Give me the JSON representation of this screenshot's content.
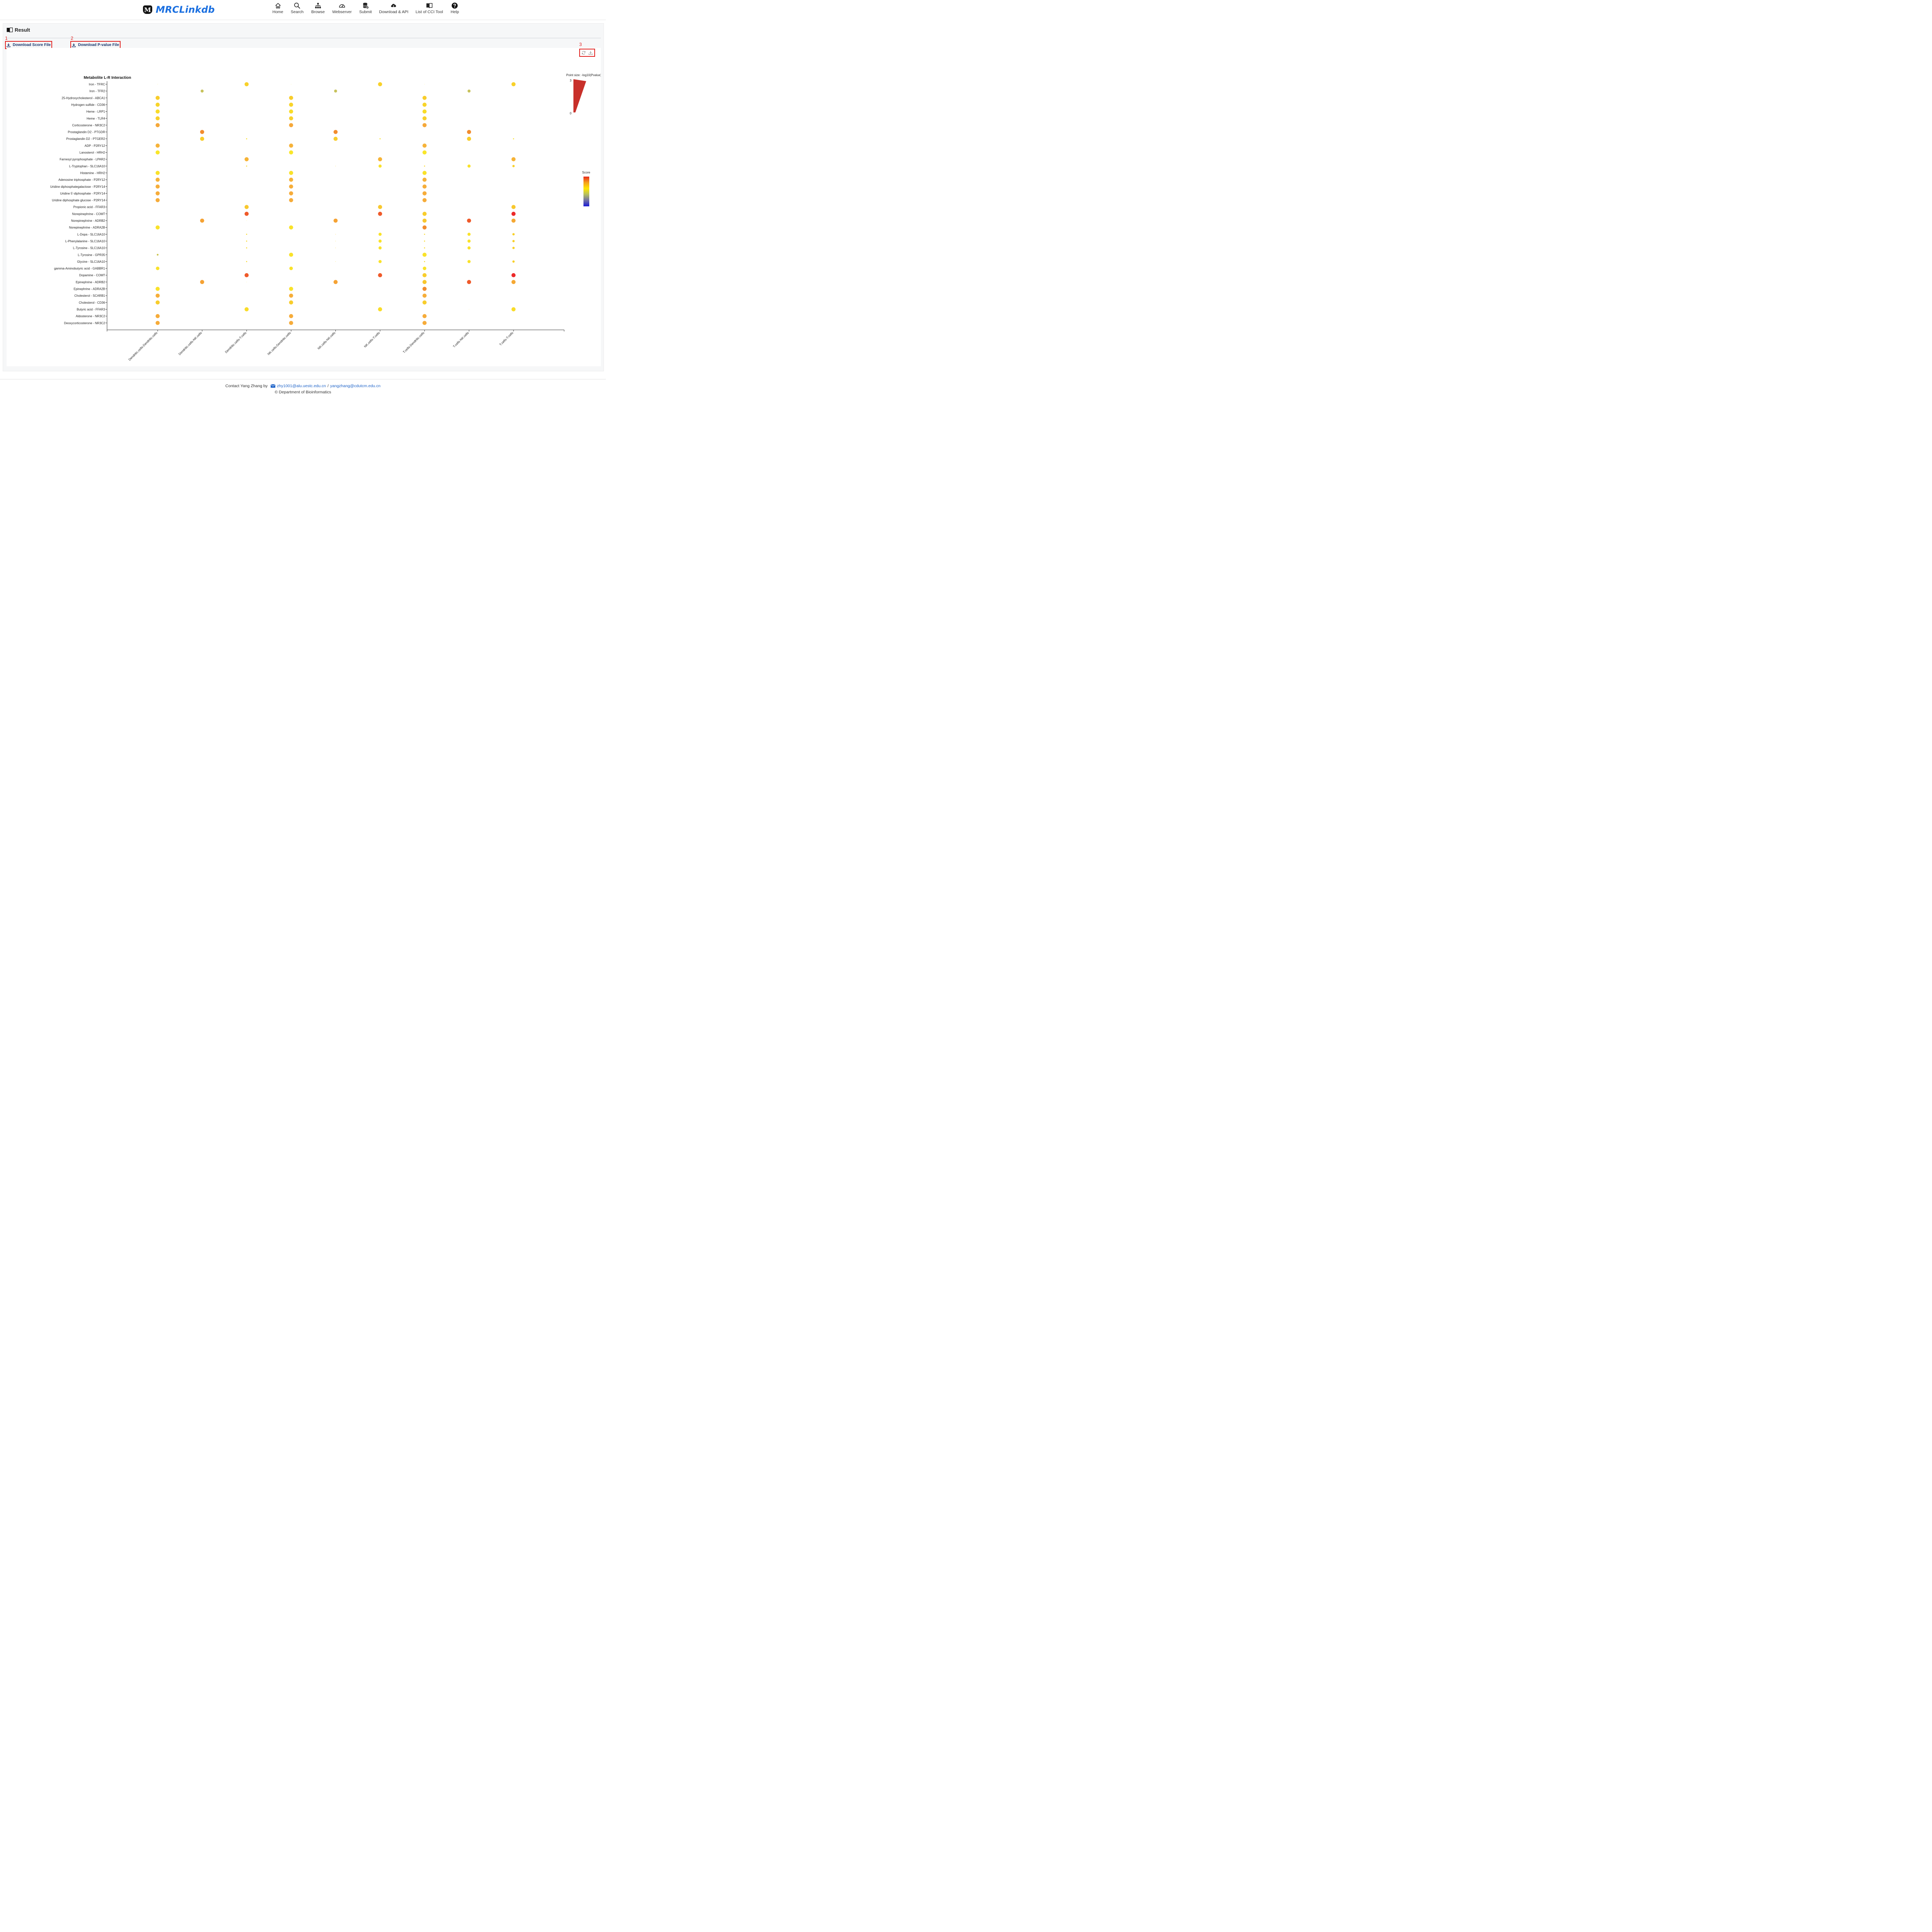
{
  "app": {
    "name": "MRCLinkdb",
    "logo_letter": "M"
  },
  "nav": [
    {
      "label": "Home",
      "icon": "home-icon"
    },
    {
      "label": "Search",
      "icon": "search-icon"
    },
    {
      "label": "Browse",
      "icon": "sitemap-icon"
    },
    {
      "label": "Webserver",
      "icon": "gauge-icon"
    },
    {
      "label": "Submit",
      "icon": "database-icon"
    },
    {
      "label": "Download & API",
      "icon": "cloud-download-icon"
    },
    {
      "label": "List of CCI Tool",
      "icon": "book-icon"
    },
    {
      "label": "Help",
      "icon": "help-icon"
    }
  ],
  "result": {
    "title": "Result",
    "download_score_label": "Download Score File",
    "download_pvalue_label": "Download P-value File",
    "markers": [
      "1",
      "2",
      "3"
    ]
  },
  "chart_data": {
    "type": "scatter",
    "title": "Metabolite L-R Interaction",
    "categories_x": [
      "Dendritic.cells-Dendritic.cells",
      "Dendritic.cells-NK.cells",
      "Dendritic.cells-T.cells",
      "NK.cells-Dendritic.cells",
      "NK.cells-NK.cells",
      "NK.cells-T.cells",
      "T.cells-Dendritic.cells",
      "T.cells-NK.cells",
      "T.cells-T.cells"
    ],
    "categories_y": [
      "Iron - TFRC",
      "Iron - TFR2",
      "25-Hydroxycholesterol - ABCA1",
      "Hydrogen sulfide - CD36",
      "Heme - LRP1",
      "Heme - TLR4",
      "Corticosterone - NR3C2",
      "Prostaglandin D2 - PTGDR",
      "Prostaglandin D2 - PTGER2",
      "ADP - P2RY12",
      "Lanosterol - HRH2",
      "Farnesyl pyrophosphate - LPAR2",
      "L-Tryptophan - SLC16A10",
      "Histamine - HRH2",
      "Adenosine triphosphate - P2RY12",
      "Uridine diphosphategalactose - P2RY14",
      "Uridine 5'-diphosphate - P2RY14",
      "Uridine diphosphate glucose - P2RY14",
      "Propionic acid - FFAR3",
      "Norepinephrine - COMT",
      "Norepinephrine - ADRB2",
      "Norepinephrine - ADRA2B",
      "L-Dopa - SLC16A10",
      "L-Phenylalanine - SLC16A10",
      "L-Tyrosine - SLC16A10",
      "L-Tyrosine - GPR35",
      "Glycine - SLC16A10",
      "gamma-Aminobutyric acid - GABBR1",
      "Dopamine - COMT",
      "Epinephrine - ADRB2",
      "Epinephrine - ADRA2B",
      "Cholesterol - SCARB1",
      "Cholesterol - CD36",
      "Butyric acid - FFAR3",
      "Aldosterone - NR3C2",
      "Deoxycorticosterone - NR3C2"
    ],
    "point_size_legend": {
      "title": "Point size: -log10(Pvalue)",
      "min": 0,
      "max": 3
    },
    "color_legend": {
      "title": "Score",
      "colors": [
        "#e8281c",
        "#f5a01a",
        "#ffe600",
        "#b5bf5e",
        "#6f6fa6",
        "#1a1ad6"
      ]
    },
    "points": [
      {
        "x": 0,
        "y": 0,
        "size": 0.1,
        "color": "#fff2a0"
      },
      {
        "x": 2,
        "y": 0,
        "size": 3,
        "color": "#f8d12a"
      },
      {
        "x": 3,
        "y": 0,
        "size": 0.1,
        "color": "#fff2a0"
      },
      {
        "x": 5,
        "y": 0,
        "size": 3,
        "color": "#f8d12a"
      },
      {
        "x": 6,
        "y": 0,
        "size": 0.1,
        "color": "#fff2a0"
      },
      {
        "x": 8,
        "y": 0,
        "size": 3,
        "color": "#f8d12a"
      },
      {
        "x": 1,
        "y": 1,
        "size": 2.2,
        "color": "#c7c25c"
      },
      {
        "x": 4,
        "y": 1,
        "size": 2.2,
        "color": "#c7c25c"
      },
      {
        "x": 7,
        "y": 1,
        "size": 2.2,
        "color": "#c7c25c"
      },
      {
        "x": 0,
        "y": 2,
        "size": 3,
        "color": "#f8cd2c"
      },
      {
        "x": 3,
        "y": 2,
        "size": 3,
        "color": "#f8cd2c"
      },
      {
        "x": 6,
        "y": 2,
        "size": 3,
        "color": "#f8cd2c"
      },
      {
        "x": 0,
        "y": 3,
        "size": 3,
        "color": "#f8d42a"
      },
      {
        "x": 3,
        "y": 3,
        "size": 3,
        "color": "#f8d42a"
      },
      {
        "x": 6,
        "y": 3,
        "size": 3,
        "color": "#f8d42a"
      },
      {
        "x": 0,
        "y": 4,
        "size": 3,
        "color": "#f9dc28"
      },
      {
        "x": 3,
        "y": 4,
        "size": 3,
        "color": "#f9dc28"
      },
      {
        "x": 6,
        "y": 4,
        "size": 3,
        "color": "#f9dc28"
      },
      {
        "x": 0,
        "y": 5,
        "size": 3,
        "color": "#f8d02c"
      },
      {
        "x": 3,
        "y": 5,
        "size": 3,
        "color": "#f8d02c"
      },
      {
        "x": 6,
        "y": 5,
        "size": 3,
        "color": "#f8d02c"
      },
      {
        "x": 0,
        "y": 6,
        "size": 3,
        "color": "#f5a83a"
      },
      {
        "x": 3,
        "y": 6,
        "size": 3,
        "color": "#f5a83a"
      },
      {
        "x": 6,
        "y": 6,
        "size": 3,
        "color": "#f5a83a"
      },
      {
        "x": 1,
        "y": 7,
        "size": 3,
        "color": "#f28c2e"
      },
      {
        "x": 4,
        "y": 7,
        "size": 3,
        "color": "#f28c2e"
      },
      {
        "x": 7,
        "y": 7,
        "size": 3,
        "color": "#f28c2e"
      },
      {
        "x": 1,
        "y": 8,
        "size": 3,
        "color": "#f8cd2c"
      },
      {
        "x": 2,
        "y": 8,
        "size": 0.8,
        "color": "#f8e02a"
      },
      {
        "x": 4,
        "y": 8,
        "size": 3,
        "color": "#f8cd2c"
      },
      {
        "x": 5,
        "y": 8,
        "size": 0.8,
        "color": "#f8e02a"
      },
      {
        "x": 7,
        "y": 8,
        "size": 3,
        "color": "#f8cd2c"
      },
      {
        "x": 8,
        "y": 8,
        "size": 0.8,
        "color": "#f8e02a"
      },
      {
        "x": 0,
        "y": 9,
        "size": 3,
        "color": "#f6b33a"
      },
      {
        "x": 3,
        "y": 9,
        "size": 3,
        "color": "#f6b33a"
      },
      {
        "x": 6,
        "y": 9,
        "size": 3,
        "color": "#f6b33a"
      },
      {
        "x": 0,
        "y": 10,
        "size": 3,
        "color": "#f9e62a"
      },
      {
        "x": 3,
        "y": 10,
        "size": 3,
        "color": "#f9e62a"
      },
      {
        "x": 6,
        "y": 10,
        "size": 3,
        "color": "#f9e62a"
      },
      {
        "x": 2,
        "y": 11,
        "size": 3,
        "color": "#f6b336"
      },
      {
        "x": 5,
        "y": 11,
        "size": 3,
        "color": "#f6b336"
      },
      {
        "x": 8,
        "y": 11,
        "size": 3,
        "color": "#f6b336"
      },
      {
        "x": 2,
        "y": 12,
        "size": 0.8,
        "color": "#f8d82a"
      },
      {
        "x": 4,
        "y": 12,
        "size": 0.4,
        "color": "#f8e070"
      },
      {
        "x": 5,
        "y": 12,
        "size": 2.3,
        "color": "#f9e22a"
      },
      {
        "x": 6,
        "y": 12,
        "size": 0.8,
        "color": "#f8d82a"
      },
      {
        "x": 7,
        "y": 12,
        "size": 2.3,
        "color": "#f9e22a"
      },
      {
        "x": 8,
        "y": 12,
        "size": 1.7,
        "color": "#f8d02a"
      },
      {
        "x": 0,
        "y": 13,
        "size": 3,
        "color": "#f9e22a"
      },
      {
        "x": 3,
        "y": 13,
        "size": 3,
        "color": "#f9e22a"
      },
      {
        "x": 6,
        "y": 13,
        "size": 3,
        "color": "#f9e22a"
      },
      {
        "x": 0,
        "y": 14,
        "size": 3,
        "color": "#f6b23a"
      },
      {
        "x": 3,
        "y": 14,
        "size": 3,
        "color": "#f6b23a"
      },
      {
        "x": 6,
        "y": 14,
        "size": 3,
        "color": "#f6b23a"
      },
      {
        "x": 0,
        "y": 15,
        "size": 3,
        "color": "#f6ae3a"
      },
      {
        "x": 3,
        "y": 15,
        "size": 3,
        "color": "#f6ae3a"
      },
      {
        "x": 6,
        "y": 15,
        "size": 3,
        "color": "#f6ae3a"
      },
      {
        "x": 0,
        "y": 16,
        "size": 3,
        "color": "#f6ac3a"
      },
      {
        "x": 3,
        "y": 16,
        "size": 3,
        "color": "#f6ac3a"
      },
      {
        "x": 6,
        "y": 16,
        "size": 3,
        "color": "#f6ac3a"
      },
      {
        "x": 0,
        "y": 17,
        "size": 3,
        "color": "#f6ac3a"
      },
      {
        "x": 3,
        "y": 17,
        "size": 3,
        "color": "#f6ac3a"
      },
      {
        "x": 6,
        "y": 17,
        "size": 3,
        "color": "#f6ac3a"
      },
      {
        "x": 2,
        "y": 18,
        "size": 3,
        "color": "#f8c82e"
      },
      {
        "x": 5,
        "y": 18,
        "size": 3,
        "color": "#f8c82e"
      },
      {
        "x": 8,
        "y": 18,
        "size": 3,
        "color": "#f8c82e"
      },
      {
        "x": 2,
        "y": 19,
        "size": 3,
        "color": "#ef5a2a"
      },
      {
        "x": 5,
        "y": 19,
        "size": 3,
        "color": "#ef5a2a"
      },
      {
        "x": 6,
        "y": 19,
        "size": 3,
        "color": "#f8cd2c"
      },
      {
        "x": 8,
        "y": 19,
        "size": 3,
        "color": "#ec2a2a"
      },
      {
        "x": 1,
        "y": 20,
        "size": 3,
        "color": "#f5a233"
      },
      {
        "x": 2,
        "y": 20,
        "size": 0.1,
        "color": "#fff2a0"
      },
      {
        "x": 4,
        "y": 20,
        "size": 3,
        "color": "#f5a233"
      },
      {
        "x": 6,
        "y": 20,
        "size": 3,
        "color": "#f8c72e"
      },
      {
        "x": 7,
        "y": 20,
        "size": 3,
        "color": "#ef5a2a"
      },
      {
        "x": 8,
        "y": 20,
        "size": 3,
        "color": "#f5a833"
      },
      {
        "x": 0,
        "y": 21,
        "size": 3,
        "color": "#f9e22a"
      },
      {
        "x": 3,
        "y": 21,
        "size": 3,
        "color": "#f9e22a"
      },
      {
        "x": 6,
        "y": 21,
        "size": 3,
        "color": "#f28c2e"
      },
      {
        "x": 2,
        "y": 22,
        "size": 0.8,
        "color": "#f8d82a"
      },
      {
        "x": 4,
        "y": 22,
        "size": 0.4,
        "color": "#f8e070"
      },
      {
        "x": 5,
        "y": 22,
        "size": 2.3,
        "color": "#f9e22a"
      },
      {
        "x": 6,
        "y": 22,
        "size": 0.8,
        "color": "#f8d82a"
      },
      {
        "x": 7,
        "y": 22,
        "size": 2.3,
        "color": "#f9e22a"
      },
      {
        "x": 8,
        "y": 22,
        "size": 1.7,
        "color": "#f8d02a"
      },
      {
        "x": 2,
        "y": 23,
        "size": 0.8,
        "color": "#f8d82a"
      },
      {
        "x": 4,
        "y": 23,
        "size": 0.4,
        "color": "#f8e070"
      },
      {
        "x": 5,
        "y": 23,
        "size": 2.3,
        "color": "#f9e22a"
      },
      {
        "x": 6,
        "y": 23,
        "size": 0.8,
        "color": "#f8d82a"
      },
      {
        "x": 7,
        "y": 23,
        "size": 2.3,
        "color": "#f9e22a"
      },
      {
        "x": 8,
        "y": 23,
        "size": 1.7,
        "color": "#f8d02a"
      },
      {
        "x": 2,
        "y": 24,
        "size": 0.8,
        "color": "#f8d82a"
      },
      {
        "x": 4,
        "y": 24,
        "size": 0.4,
        "color": "#f8e070"
      },
      {
        "x": 5,
        "y": 24,
        "size": 2.3,
        "color": "#f9e22a"
      },
      {
        "x": 6,
        "y": 24,
        "size": 0.8,
        "color": "#f8d82a"
      },
      {
        "x": 7,
        "y": 24,
        "size": 2.3,
        "color": "#f9e22a"
      },
      {
        "x": 8,
        "y": 24,
        "size": 1.7,
        "color": "#f8d02a"
      },
      {
        "x": 0,
        "y": 25,
        "size": 1.3,
        "color": "#c9c44c"
      },
      {
        "x": 3,
        "y": 25,
        "size": 3,
        "color": "#f9e22a"
      },
      {
        "x": 6,
        "y": 25,
        "size": 3,
        "color": "#f9e22a"
      },
      {
        "x": 2,
        "y": 26,
        "size": 0.8,
        "color": "#f8d82a"
      },
      {
        "x": 4,
        "y": 26,
        "size": 0.4,
        "color": "#f8e070"
      },
      {
        "x": 5,
        "y": 26,
        "size": 2.3,
        "color": "#f9e22a"
      },
      {
        "x": 6,
        "y": 26,
        "size": 0.8,
        "color": "#f8d82a"
      },
      {
        "x": 7,
        "y": 26,
        "size": 2.3,
        "color": "#f9e22a"
      },
      {
        "x": 8,
        "y": 26,
        "size": 1.7,
        "color": "#f8d02a"
      },
      {
        "x": 0,
        "y": 27,
        "size": 2.6,
        "color": "#f9e22a"
      },
      {
        "x": 3,
        "y": 27,
        "size": 2.6,
        "color": "#f9e22a"
      },
      {
        "x": 6,
        "y": 27,
        "size": 2.6,
        "color": "#f9e22a"
      },
      {
        "x": 2,
        "y": 28,
        "size": 3,
        "color": "#ef5a2a"
      },
      {
        "x": 5,
        "y": 28,
        "size": 3,
        "color": "#ef5a2a"
      },
      {
        "x": 6,
        "y": 28,
        "size": 3,
        "color": "#f8cd2c"
      },
      {
        "x": 8,
        "y": 28,
        "size": 3,
        "color": "#ec2a2a"
      },
      {
        "x": 1,
        "y": 29,
        "size": 3,
        "color": "#f5a233"
      },
      {
        "x": 2,
        "y": 29,
        "size": 0.1,
        "color": "#fff2a0"
      },
      {
        "x": 4,
        "y": 29,
        "size": 3,
        "color": "#f5a233"
      },
      {
        "x": 6,
        "y": 29,
        "size": 3,
        "color": "#f8c72e"
      },
      {
        "x": 7,
        "y": 29,
        "size": 3,
        "color": "#ef5a2a"
      },
      {
        "x": 8,
        "y": 29,
        "size": 3,
        "color": "#f5a833"
      },
      {
        "x": 0,
        "y": 30,
        "size": 3,
        "color": "#f9e22a"
      },
      {
        "x": 3,
        "y": 30,
        "size": 3,
        "color": "#f9e22a"
      },
      {
        "x": 6,
        "y": 30,
        "size": 3,
        "color": "#f28c2e"
      },
      {
        "x": 0,
        "y": 31,
        "size": 3,
        "color": "#f6ae3a"
      },
      {
        "x": 3,
        "y": 31,
        "size": 3,
        "color": "#f6ae3a"
      },
      {
        "x": 6,
        "y": 31,
        "size": 3,
        "color": "#f6ae3a"
      },
      {
        "x": 0,
        "y": 32,
        "size": 3,
        "color": "#f8cd2c"
      },
      {
        "x": 3,
        "y": 32,
        "size": 3,
        "color": "#f8cd2c"
      },
      {
        "x": 6,
        "y": 32,
        "size": 3,
        "color": "#f8cd2c"
      },
      {
        "x": 2,
        "y": 33,
        "size": 3,
        "color": "#f9dc28"
      },
      {
        "x": 5,
        "y": 33,
        "size": 3,
        "color": "#f9dc28"
      },
      {
        "x": 7,
        "y": 33,
        "size": 0.1,
        "color": "#fff2a0"
      },
      {
        "x": 8,
        "y": 33,
        "size": 3,
        "color": "#f9dc28"
      },
      {
        "x": 0,
        "y": 34,
        "size": 3,
        "color": "#f6ac3a"
      },
      {
        "x": 3,
        "y": 34,
        "size": 3,
        "color": "#f6ac3a"
      },
      {
        "x": 6,
        "y": 34,
        "size": 3,
        "color": "#f6ac3a"
      },
      {
        "x": 0,
        "y": 35,
        "size": 3,
        "color": "#f6ac3a"
      },
      {
        "x": 3,
        "y": 35,
        "size": 3,
        "color": "#f6ac3a"
      },
      {
        "x": 6,
        "y": 35,
        "size": 3,
        "color": "#f6ac3a"
      }
    ]
  },
  "footer": {
    "contact_prefix": "Contact Yang Zhang by",
    "email1": "zhy1001@alu.uestc.edu.cn",
    "separator": "/",
    "email2": "yangzhang@cdutcm.edu.cn",
    "copyright": "© Department of Bioinformatics"
  }
}
